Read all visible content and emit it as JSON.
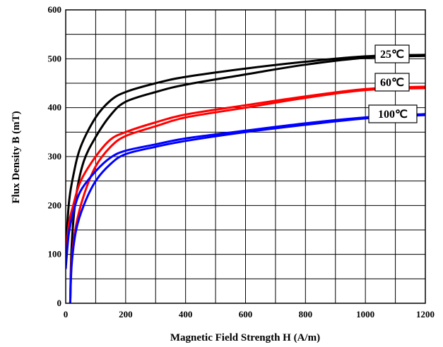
{
  "chart_data": {
    "type": "line",
    "xlabel": "Magnetic Field Strength H (A/m)",
    "ylabel": "Flux Density B (mT)",
    "xlim": [
      0,
      1200
    ],
    "ylim": [
      0,
      600
    ],
    "xticks": [
      "0",
      "200",
      "400",
      "600",
      "800",
      "1000",
      "1200"
    ],
    "yticks": [
      "0",
      "100",
      "200",
      "300",
      "400",
      "500",
      "600"
    ],
    "grid": true,
    "series": [
      {
        "name": "25℃",
        "color": "#000000",
        "upper": [
          [
            0,
            100
          ],
          [
            10,
            200
          ],
          [
            25,
            260
          ],
          [
            50,
            320
          ],
          [
            100,
            380
          ],
          [
            150,
            415
          ],
          [
            200,
            432
          ],
          [
            300,
            450
          ],
          [
            400,
            463
          ],
          [
            600,
            480
          ],
          [
            800,
            494
          ],
          [
            1000,
            505
          ],
          [
            1200,
            508
          ]
        ],
        "lower": [
          [
            15,
            0
          ],
          [
            20,
            120
          ],
          [
            35,
            220
          ],
          [
            60,
            290
          ],
          [
            100,
            340
          ],
          [
            150,
            385
          ],
          [
            200,
            412
          ],
          [
            300,
            432
          ],
          [
            400,
            447
          ],
          [
            600,
            468
          ],
          [
            800,
            488
          ],
          [
            1000,
            502
          ],
          [
            1200,
            506
          ]
        ]
      },
      {
        "name": "60℃",
        "color": "#ff0000",
        "upper": [
          [
            0,
            90
          ],
          [
            10,
            160
          ],
          [
            25,
            200
          ],
          [
            50,
            250
          ],
          [
            100,
            300
          ],
          [
            150,
            335
          ],
          [
            200,
            350
          ],
          [
            300,
            370
          ],
          [
            400,
            386
          ],
          [
            600,
            405
          ],
          [
            800,
            423
          ],
          [
            1000,
            438
          ],
          [
            1200,
            443
          ]
        ],
        "lower": [
          [
            15,
            0
          ],
          [
            20,
            90
          ],
          [
            35,
            160
          ],
          [
            60,
            220
          ],
          [
            100,
            280
          ],
          [
            150,
            320
          ],
          [
            200,
            342
          ],
          [
            300,
            362
          ],
          [
            400,
            380
          ],
          [
            600,
            400
          ],
          [
            800,
            420
          ],
          [
            1000,
            436
          ],
          [
            1200,
            440
          ]
        ]
      },
      {
        "name": "100℃",
        "color": "#0000ff",
        "upper": [
          [
            0,
            70
          ],
          [
            10,
            140
          ],
          [
            25,
            185
          ],
          [
            50,
            230
          ],
          [
            100,
            270
          ],
          [
            150,
            298
          ],
          [
            200,
            312
          ],
          [
            300,
            325
          ],
          [
            400,
            337
          ],
          [
            600,
            353
          ],
          [
            800,
            368
          ],
          [
            1000,
            380
          ],
          [
            1200,
            387
          ]
        ],
        "lower": [
          [
            15,
            0
          ],
          [
            20,
            80
          ],
          [
            35,
            150
          ],
          [
            60,
            200
          ],
          [
            100,
            250
          ],
          [
            150,
            285
          ],
          [
            200,
            305
          ],
          [
            300,
            320
          ],
          [
            400,
            332
          ],
          [
            600,
            350
          ],
          [
            800,
            365
          ],
          [
            1000,
            378
          ],
          [
            1200,
            385
          ]
        ]
      }
    ]
  }
}
